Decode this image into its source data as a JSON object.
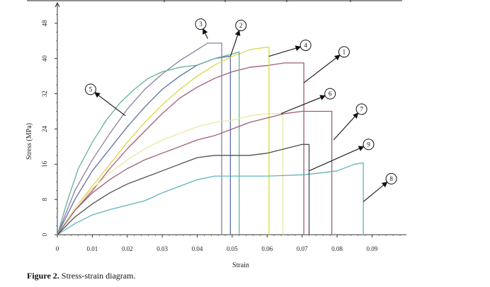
{
  "caption": {
    "label": "Figure 2.",
    "text": " Stress-strain diagram."
  },
  "chart_data": {
    "type": "line",
    "title": "",
    "xlabel": "Strain",
    "ylabel": "Stress (MPa)",
    "xlim": [
      0,
      0.097
    ],
    "ylim": [
      0,
      52
    ],
    "x_ticks": [
      0,
      0.01,
      0.02,
      0.03,
      0.04,
      0.05,
      0.06,
      0.07,
      0.08,
      0.09
    ],
    "x_tick_labels": [
      "0",
      "0.01",
      "0.02",
      "0.03",
      "0.04",
      "0.05",
      "0.06",
      "0.07",
      "0.08",
      "0.09"
    ],
    "y_ticks": [
      0,
      8,
      16,
      24,
      32,
      40,
      48
    ],
    "y_tick_labels": [
      "0",
      "8",
      "16",
      "24",
      "32",
      "40",
      "48"
    ],
    "grid": false,
    "legend": "callouts",
    "series": [
      {
        "id": "1",
        "color": "#a35a78",
        "points": [
          [
            0,
            0
          ],
          [
            0.005,
            5.5
          ],
          [
            0.01,
            10
          ],
          [
            0.015,
            15
          ],
          [
            0.02,
            19.5
          ],
          [
            0.025,
            23.5
          ],
          [
            0.03,
            27.5
          ],
          [
            0.035,
            31
          ],
          [
            0.04,
            33.5
          ],
          [
            0.045,
            35.5
          ],
          [
            0.05,
            37
          ],
          [
            0.055,
            38
          ],
          [
            0.06,
            38.4
          ],
          [
            0.065,
            39
          ],
          [
            0.0705,
            39
          ],
          [
            0.0705,
            0
          ]
        ]
      },
      {
        "id": "2",
        "color": "#5f6fa8",
        "points": [
          [
            0,
            0
          ],
          [
            0.005,
            8
          ],
          [
            0.01,
            14.5
          ],
          [
            0.015,
            19.5
          ],
          [
            0.02,
            24.5
          ],
          [
            0.025,
            29
          ],
          [
            0.03,
            33
          ],
          [
            0.035,
            36
          ],
          [
            0.04,
            38.5
          ],
          [
            0.045,
            40
          ],
          [
            0.049,
            40.5
          ],
          [
            0.0495,
            40.5
          ],
          [
            0.0495,
            0
          ]
        ]
      },
      {
        "id": "3",
        "color": "#8c7fa3",
        "points": [
          [
            0,
            0
          ],
          [
            0.005,
            10
          ],
          [
            0.01,
            17
          ],
          [
            0.015,
            23
          ],
          [
            0.02,
            28.5
          ],
          [
            0.025,
            33
          ],
          [
            0.03,
            36.5
          ],
          [
            0.035,
            39.5
          ],
          [
            0.04,
            42
          ],
          [
            0.043,
            43.5
          ],
          [
            0.047,
            43.5
          ],
          [
            0.047,
            0
          ]
        ]
      },
      {
        "id": "4",
        "color": "#d9d84a",
        "points": [
          [
            0,
            0
          ],
          [
            0.005,
            6
          ],
          [
            0.01,
            11
          ],
          [
            0.015,
            16
          ],
          [
            0.02,
            21
          ],
          [
            0.025,
            25.5
          ],
          [
            0.03,
            29.5
          ],
          [
            0.035,
            33
          ],
          [
            0.04,
            36
          ],
          [
            0.045,
            38.5
          ],
          [
            0.05,
            40.5
          ],
          [
            0.055,
            42
          ],
          [
            0.06,
            42.6
          ],
          [
            0.0605,
            42.6
          ],
          [
            0.0605,
            0
          ]
        ]
      },
      {
        "id": "5",
        "color": "#62b29a",
        "points": [
          [
            0,
            0
          ],
          [
            0.003,
            8
          ],
          [
            0.006,
            15
          ],
          [
            0.01,
            21
          ],
          [
            0.014,
            26
          ],
          [
            0.018,
            30
          ],
          [
            0.022,
            33
          ],
          [
            0.026,
            35.5
          ],
          [
            0.03,
            37
          ],
          [
            0.035,
            38
          ],
          [
            0.04,
            38.5
          ],
          [
            0.045,
            40
          ],
          [
            0.05,
            41
          ],
          [
            0.052,
            41.5
          ],
          [
            0.052,
            0
          ]
        ]
      },
      {
        "id": "6",
        "color": "#e8e8a0",
        "points": [
          [
            0,
            0
          ],
          [
            0.005,
            6
          ],
          [
            0.01,
            10.5
          ],
          [
            0.015,
            14
          ],
          [
            0.02,
            17
          ],
          [
            0.025,
            19.5
          ],
          [
            0.03,
            21.5
          ],
          [
            0.035,
            23
          ],
          [
            0.04,
            24.5
          ],
          [
            0.045,
            25.5
          ],
          [
            0.05,
            26
          ],
          [
            0.055,
            27
          ],
          [
            0.06,
            27.5
          ],
          [
            0.0645,
            27.5
          ],
          [
            0.0645,
            0
          ]
        ]
      },
      {
        "id": "7",
        "color": "#9e5e78",
        "points": [
          [
            0,
            0
          ],
          [
            0.005,
            5.5
          ],
          [
            0.01,
            9.5
          ],
          [
            0.015,
            12.5
          ],
          [
            0.02,
            15
          ],
          [
            0.025,
            17
          ],
          [
            0.03,
            18.5
          ],
          [
            0.035,
            20
          ],
          [
            0.04,
            21.5
          ],
          [
            0.045,
            22.5
          ],
          [
            0.05,
            24
          ],
          [
            0.055,
            25.5
          ],
          [
            0.06,
            26.5
          ],
          [
            0.065,
            27.5
          ],
          [
            0.07,
            28
          ],
          [
            0.0785,
            28
          ],
          [
            0.0785,
            0
          ]
        ]
      },
      {
        "id": "8",
        "color": "#5fb3bd",
        "points": [
          [
            0,
            0
          ],
          [
            0.005,
            2.5
          ],
          [
            0.01,
            4.5
          ],
          [
            0.015,
            5.7
          ],
          [
            0.02,
            6.7
          ],
          [
            0.025,
            7.7
          ],
          [
            0.03,
            9.5
          ],
          [
            0.035,
            11
          ],
          [
            0.04,
            12.5
          ],
          [
            0.045,
            13.3
          ],
          [
            0.05,
            13.3
          ],
          [
            0.06,
            13.3
          ],
          [
            0.07,
            13.6
          ],
          [
            0.075,
            14
          ],
          [
            0.08,
            14.5
          ],
          [
            0.085,
            16
          ],
          [
            0.0875,
            16.3
          ],
          [
            0.0875,
            0
          ]
        ]
      },
      {
        "id": "9",
        "color": "#505050",
        "points": [
          [
            0,
            0
          ],
          [
            0.005,
            4
          ],
          [
            0.01,
            7
          ],
          [
            0.015,
            9.5
          ],
          [
            0.02,
            11.5
          ],
          [
            0.025,
            13
          ],
          [
            0.03,
            14.5
          ],
          [
            0.035,
            16
          ],
          [
            0.04,
            17.5
          ],
          [
            0.045,
            18
          ],
          [
            0.05,
            18
          ],
          [
            0.055,
            18
          ],
          [
            0.06,
            18.5
          ],
          [
            0.065,
            19.5
          ],
          [
            0.07,
            20.5
          ],
          [
            0.072,
            20.5
          ],
          [
            0.072,
            0
          ]
        ]
      }
    ],
    "callouts": [
      {
        "label": "1",
        "x": 0.082,
        "y": 41.5,
        "to": [
          0.0705,
          34.5
        ]
      },
      {
        "label": "2",
        "x": 0.0525,
        "y": 47.5,
        "to": [
          0.0495,
          40.5
        ]
      },
      {
        "label": "3",
        "x": 0.041,
        "y": 47.8,
        "to": [
          0.043,
          44.5
        ]
      },
      {
        "label": "4",
        "x": 0.071,
        "y": 43,
        "to": [
          0.0605,
          40.5
        ]
      },
      {
        "label": "5",
        "x": 0.0095,
        "y": 33,
        "to": [
          0.0195,
          27
        ]
      },
      {
        "label": "6",
        "x": 0.078,
        "y": 32,
        "to": [
          0.064,
          27.5
        ]
      },
      {
        "label": "7",
        "x": 0.087,
        "y": 28.5,
        "to": [
          0.079,
          21.5
        ]
      },
      {
        "label": "8",
        "x": 0.0955,
        "y": 12.7,
        "to": [
          0.0875,
          7.5
        ]
      },
      {
        "label": "9",
        "x": 0.089,
        "y": 20.5,
        "to": [
          0.072,
          14.5
        ]
      }
    ]
  }
}
